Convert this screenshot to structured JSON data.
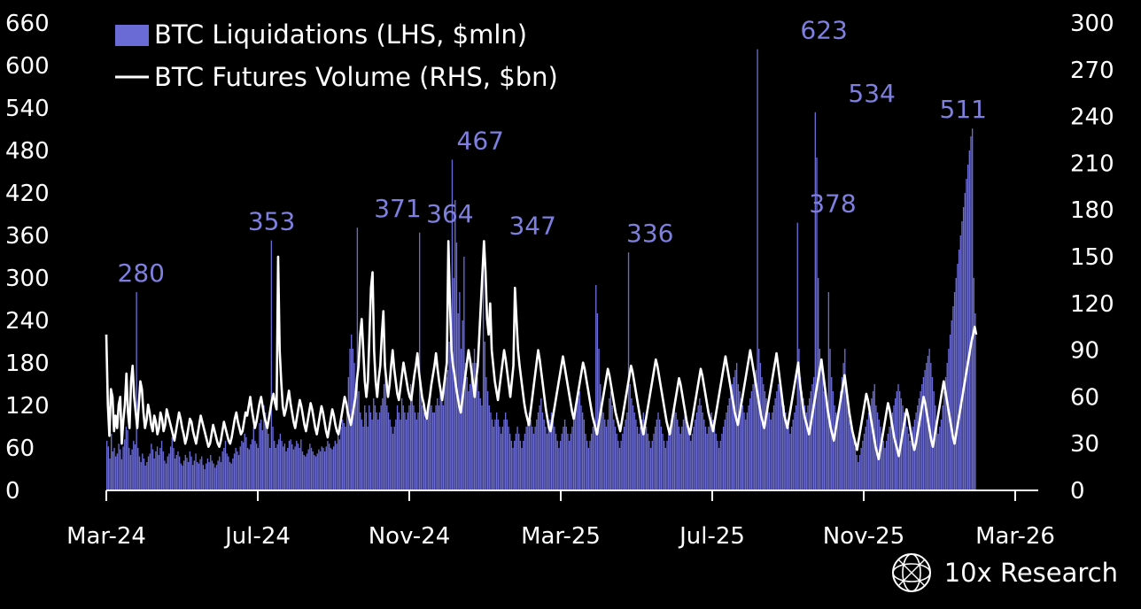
{
  "brand": {
    "name": "10x Research",
    "logo_icon": "globe-icon"
  },
  "colors": {
    "background": "#000000",
    "bars": "#6b6bd6",
    "line": "#ffffff",
    "annotation": "#7f7fe0",
    "text": "#ffffff"
  },
  "chart_data": {
    "type": "bar+line",
    "legend_placement": "top-left",
    "series": [
      {
        "name": "BTC Liquidations (LHS, $mln)",
        "kind": "bar",
        "axis": "left",
        "values": [
          70,
          62,
          45,
          80,
          55,
          60,
          48,
          52,
          66,
          58,
          44,
          62,
          72,
          90,
          85,
          60,
          50,
          58,
          70,
          65,
          280,
          60,
          48,
          40,
          52,
          45,
          35,
          40,
          48,
          52,
          66,
          58,
          45,
          55,
          62,
          50,
          60,
          70,
          55,
          42,
          38,
          48,
          52,
          62,
          75,
          60,
          45,
          50,
          55,
          48,
          38,
          35,
          42,
          50,
          46,
          40,
          55,
          48,
          36,
          42,
          52,
          40,
          38,
          44,
          48,
          36,
          30,
          38,
          45,
          40,
          50,
          42,
          38,
          32,
          36,
          42,
          48,
          40,
          55,
          60,
          70,
          52,
          48,
          40,
          38,
          45,
          52,
          60,
          55,
          50,
          62,
          70,
          68,
          80,
          75,
          60,
          58,
          65,
          72,
          90,
          70,
          66,
          60,
          95,
          100,
          85,
          120,
          110,
          90,
          80,
          60,
          353,
          90,
          70,
          60,
          65,
          72,
          80,
          70,
          62,
          66,
          55,
          60,
          70,
          72,
          65,
          58,
          62,
          70,
          66,
          60,
          72,
          55,
          50,
          48,
          52,
          58,
          66,
          60,
          55,
          50,
          48,
          52,
          58,
          55,
          62,
          60,
          55,
          62,
          70,
          66,
          60,
          58,
          62,
          70,
          66,
          80,
          72,
          90,
          100,
          95,
          90,
          120,
          160,
          200,
          220,
          200,
          180,
          150,
          371,
          140,
          110,
          100,
          90,
          120,
          110,
          90,
          120,
          110,
          100,
          130,
          120,
          110,
          100,
          110,
          120,
          130,
          150,
          180,
          120,
          110,
          100,
          90,
          80,
          90,
          100,
          120,
          110,
          100,
          130,
          120,
          110,
          100,
          110,
          120,
          150,
          130,
          120,
          110,
          100,
          110,
          364,
          150,
          120,
          110,
          100,
          110,
          120,
          130,
          120,
          110,
          110,
          120,
          130,
          120,
          140,
          130,
          120,
          150,
          160,
          170,
          210,
          250,
          467,
          300,
          410,
          350,
          250,
          280,
          200,
          240,
          330,
          180,
          160,
          140,
          150,
          160,
          180,
          200,
          180,
          160,
          140,
          130,
          120,
          347,
          210,
          160,
          140,
          120,
          110,
          100,
          90,
          100,
          110,
          100,
          90,
          80,
          90,
          100,
          110,
          100,
          90,
          80,
          70,
          60,
          70,
          80,
          90,
          80,
          70,
          60,
          70,
          80,
          90,
          100,
          110,
          100,
          90,
          80,
          90,
          100,
          110,
          120,
          130,
          110,
          100,
          90,
          80,
          90,
          100,
          110,
          100,
          90,
          80,
          70,
          60,
          70,
          80,
          90,
          100,
          90,
          80,
          70,
          80,
          90,
          100,
          110,
          120,
          130,
          140,
          120,
          110,
          100,
          80,
          70,
          60,
          70,
          80,
          90,
          100,
          290,
          250,
          200,
          150,
          120,
          110,
          100,
          90,
          100,
          130,
          140,
          120,
          100,
          90,
          80,
          70,
          60,
          70,
          80,
          90,
          100,
          110,
          336,
          150,
          130,
          120,
          110,
          100,
          90,
          80,
          90,
          100,
          110,
          100,
          90,
          80,
          70,
          60,
          70,
          80,
          90,
          100,
          110,
          100,
          90,
          80,
          70,
          60,
          70,
          80,
          90,
          100,
          110,
          120,
          110,
          100,
          90,
          80,
          90,
          100,
          110,
          100,
          90,
          80,
          70,
          80,
          90,
          100,
          110,
          120,
          130,
          120,
          110,
          100,
          90,
          80,
          90,
          100,
          110,
          100,
          90,
          80,
          70,
          60,
          70,
          80,
          90,
          100,
          110,
          120,
          130,
          140,
          150,
          160,
          170,
          180,
          150,
          140,
          130,
          120,
          110,
          100,
          110,
          120,
          130,
          140,
          150,
          160,
          170,
          623,
          200,
          180,
          160,
          150,
          140,
          130,
          120,
          110,
          100,
          110,
          120,
          130,
          140,
          150,
          160,
          140,
          130,
          120,
          110,
          100,
          90,
          80,
          90,
          100,
          110,
          120,
          378,
          200,
          160,
          140,
          130,
          120,
          110,
          120,
          130,
          140,
          150,
          160,
          534,
          470,
          300,
          200,
          180,
          160,
          140,
          130,
          120,
          280,
          200,
          160,
          140,
          120,
          110,
          100,
          120,
          140,
          160,
          180,
          200,
          150,
          120,
          100,
          90,
          80,
          70,
          60,
          50,
          40,
          50,
          60,
          70,
          80,
          90,
          100,
          110,
          120,
          130,
          140,
          150,
          120,
          110,
          100,
          90,
          80,
          70,
          60,
          70,
          80,
          90,
          100,
          110,
          120,
          130,
          140,
          150,
          140,
          130,
          120,
          110,
          100,
          90,
          80,
          70,
          80,
          90,
          100,
          110,
          120,
          130,
          140,
          150,
          160,
          170,
          180,
          190,
          200,
          180,
          160,
          140,
          120,
          100,
          80,
          90,
          100,
          120,
          140,
          160,
          180,
          200,
          220,
          240,
          260,
          280,
          300,
          320,
          340,
          360,
          380,
          400,
          420,
          440,
          460,
          480,
          500,
          511,
          300,
          250
        ]
      },
      {
        "name": "BTC Futures Volume (RHS, $bn)",
        "kind": "line",
        "axis": "right",
        "values": [
          100,
          55,
          35,
          65,
          60,
          38,
          48,
          40,
          55,
          60,
          30,
          45,
          55,
          75,
          50,
          40,
          70,
          80,
          60,
          50,
          40,
          55,
          70,
          65,
          50,
          40,
          45,
          55,
          50,
          42,
          38,
          48,
          44,
          36,
          40,
          50,
          46,
          38,
          42,
          52,
          48,
          44,
          40,
          36,
          32,
          38,
          44,
          50,
          46,
          40,
          36,
          30,
          34,
          40,
          46,
          44,
          38,
          34,
          30,
          36,
          42,
          48,
          44,
          40,
          36,
          32,
          28,
          30,
          36,
          42,
          38,
          34,
          30,
          28,
          32,
          38,
          44,
          40,
          36,
          32,
          30,
          34,
          40,
          46,
          50,
          44,
          40,
          36,
          38,
          44,
          50,
          48,
          54,
          60,
          52,
          46,
          40,
          44,
          50,
          56,
          60,
          54,
          48,
          44,
          40,
          46,
          52,
          58,
          62,
          56,
          52,
          150,
          90,
          70,
          54,
          48,
          52,
          58,
          64,
          56,
          50,
          44,
          40,
          46,
          52,
          58,
          54,
          48,
          42,
          38,
          44,
          50,
          56,
          52,
          46,
          40,
          36,
          42,
          48,
          54,
          50,
          44,
          38,
          34,
          40,
          46,
          52,
          48,
          42,
          38,
          36,
          42,
          48,
          54,
          60,
          56,
          50,
          46,
          42,
          48,
          54,
          60,
          72,
          80,
          100,
          110,
          90,
          70,
          60,
          70,
          100,
          130,
          140,
          90,
          70,
          60,
          72,
          80,
          100,
          115,
          80,
          70,
          60,
          68,
          80,
          90,
          78,
          70,
          62,
          58,
          66,
          74,
          82,
          76,
          70,
          64,
          60,
          58,
          66,
          74,
          80,
          88,
          76,
          68,
          60,
          56,
          50,
          46,
          54,
          60,
          68,
          74,
          80,
          88,
          78,
          70,
          64,
          58,
          66,
          74,
          82,
          160,
          120,
          90,
          80,
          74,
          66,
          60,
          54,
          50,
          58,
          66,
          74,
          82,
          90,
          84,
          76,
          68,
          60,
          72,
          80,
          100,
          120,
          140,
          160,
          140,
          110,
          100,
          120,
          90,
          80,
          70,
          64,
          58,
          66,
          74,
          82,
          90,
          84,
          76,
          68,
          60,
          70,
          80,
          130,
          110,
          90,
          80,
          72,
          64,
          56,
          50,
          46,
          42,
          50,
          58,
          66,
          74,
          82,
          90,
          84,
          76,
          68,
          60,
          52,
          46,
          40,
          38,
          44,
          50,
          56,
          62,
          68,
          74,
          80,
          86,
          80,
          74,
          68,
          62,
          56,
          50,
          46,
          52,
          58,
          64,
          70,
          76,
          82,
          78,
          72,
          66,
          60,
          54,
          48,
          44,
          40,
          36,
          42,
          48,
          54,
          60,
          66,
          72,
          78,
          74,
          68,
          62,
          56,
          50,
          46,
          42,
          38,
          44,
          50,
          56,
          62,
          68,
          74,
          80,
          76,
          70,
          64,
          58,
          52,
          46,
          40,
          36,
          42,
          48,
          54,
          60,
          66,
          72,
          78,
          84,
          80,
          74,
          68,
          62,
          56,
          50,
          44,
          40,
          36,
          42,
          48,
          54,
          60,
          66,
          72,
          68,
          62,
          56,
          50,
          44,
          40,
          36,
          42,
          48,
          54,
          60,
          66,
          72,
          78,
          74,
          68,
          62,
          56,
          50,
          46,
          42,
          38,
          44,
          50,
          56,
          62,
          68,
          74,
          80,
          86,
          80,
          74,
          68,
          62,
          56,
          50,
          46,
          42,
          48,
          54,
          60,
          66,
          72,
          78,
          84,
          90,
          84,
          78,
          72,
          66,
          60,
          54,
          48,
          44,
          40,
          46,
          52,
          58,
          64,
          70,
          76,
          82,
          88,
          80,
          72,
          64,
          56,
          48,
          44,
          40,
          46,
          52,
          58,
          64,
          70,
          76,
          82,
          70,
          62,
          54,
          48,
          44,
          40,
          36,
          42,
          48,
          54,
          60,
          66,
          72,
          78,
          84,
          76,
          68,
          60,
          52,
          46,
          40,
          36,
          32,
          38,
          44,
          50,
          56,
          62,
          68,
          74,
          66,
          58,
          50,
          44,
          38,
          34,
          30,
          26,
          32,
          38,
          44,
          50,
          56,
          62,
          58,
          52,
          46,
          40,
          34,
          28,
          24,
          20,
          26,
          32,
          38,
          44,
          50,
          56,
          52,
          46,
          40,
          34,
          30,
          26,
          22,
          28,
          34,
          40,
          46,
          52,
          48,
          42,
          36,
          30,
          26,
          30,
          36,
          42,
          48,
          54,
          60,
          56,
          50,
          44,
          38,
          32,
          28,
          34,
          40,
          46,
          52,
          58,
          64,
          70,
          64,
          58,
          52,
          46,
          40,
          34,
          30,
          36,
          42,
          48,
          54,
          60,
          66,
          72,
          78,
          84,
          90,
          96,
          100,
          105,
          100
        ]
      }
    ],
    "x_tick_labels": [
      "Mar-24",
      "Jul-24",
      "Nov-24",
      "Mar-25",
      "Jul-25",
      "Nov-25",
      "Mar-26"
    ],
    "left_axis": {
      "ticks": [
        "0",
        "60",
        "120",
        "180",
        "240",
        "300",
        "360",
        "420",
        "480",
        "540",
        "600",
        "660"
      ],
      "ylim": [
        0,
        660
      ]
    },
    "right_axis": {
      "ticks": [
        "0",
        "30",
        "60",
        "90",
        "120",
        "150",
        "180",
        "210",
        "240",
        "270",
        "300"
      ],
      "ylim": [
        0,
        300
      ]
    },
    "annotations": [
      {
        "label": "280",
        "x_fraction_of_series": 0.04
      },
      {
        "label": "353",
        "x_fraction_of_series": 0.19
      },
      {
        "label": "371",
        "x_fraction_of_series": 0.335
      },
      {
        "label": "364",
        "x_fraction_of_series": 0.395
      },
      {
        "label": "467",
        "x_fraction_of_series": 0.43
      },
      {
        "label": "347",
        "x_fraction_of_series": 0.49
      },
      {
        "label": "336",
        "x_fraction_of_series": 0.625
      },
      {
        "label": "623",
        "x_fraction_of_series": 0.825
      },
      {
        "label": "378",
        "x_fraction_of_series": 0.835
      },
      {
        "label": "534",
        "x_fraction_of_series": 0.88
      },
      {
        "label": "511",
        "x_fraction_of_series": 0.985
      }
    ]
  }
}
